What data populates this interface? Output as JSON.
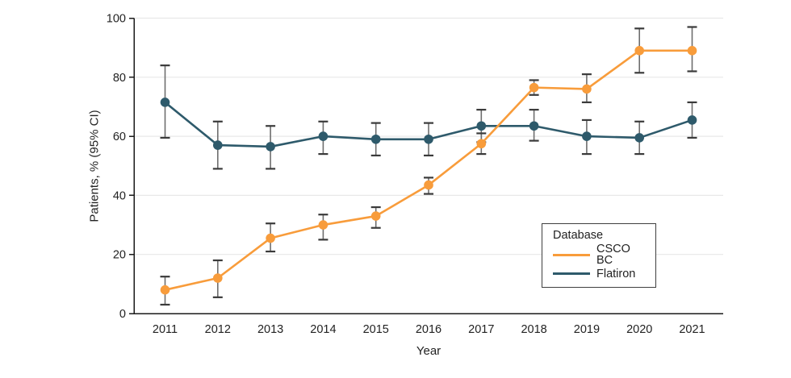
{
  "chart_data": {
    "type": "line",
    "title": "",
    "xlabel": "Year",
    "ylabel": "Patients, % (95% CI)",
    "legend_title": "Database",
    "legend_position": "lower right",
    "x": [
      2011,
      2012,
      2013,
      2014,
      2015,
      2016,
      2017,
      2018,
      2019,
      2020,
      2021
    ],
    "ylim": [
      0,
      100
    ],
    "y_ticks": [
      0,
      20,
      40,
      60,
      80,
      100
    ],
    "grid": "horizontal gridlines at y ticks",
    "gridline_color": "#E8E8E8",
    "axis_color": "#1A1A1A",
    "error_bar_color": "#6E6E6E",
    "error_bar_cap_color": "#3A3A3A",
    "series": [
      {
        "name": "CSCO BC",
        "color": "#F89C3B",
        "values": [
          8,
          12,
          25.5,
          30,
          33,
          43.5,
          57.5,
          76.5,
          76,
          89,
          89
        ],
        "ci_low": [
          3,
          5.5,
          21,
          25,
          29,
          40.5,
          54,
          74,
          71.5,
          81.5,
          82
        ],
        "ci_high": [
          12.5,
          18,
          30.5,
          33.5,
          36,
          46,
          61,
          79,
          81,
          96.5,
          97
        ]
      },
      {
        "name": "Flatiron",
        "color": "#2E5A6B",
        "values": [
          71.5,
          57,
          56.5,
          60,
          59,
          59,
          63.5,
          63.5,
          60,
          59.5,
          65.5
        ],
        "ci_low": [
          59.5,
          49,
          49,
          54,
          53.5,
          53.5,
          58,
          58.5,
          54,
          54,
          59.5
        ],
        "ci_high": [
          84,
          65,
          63.5,
          65,
          64.5,
          64.5,
          69,
          69,
          65.5,
          65,
          71.5
        ]
      }
    ]
  }
}
